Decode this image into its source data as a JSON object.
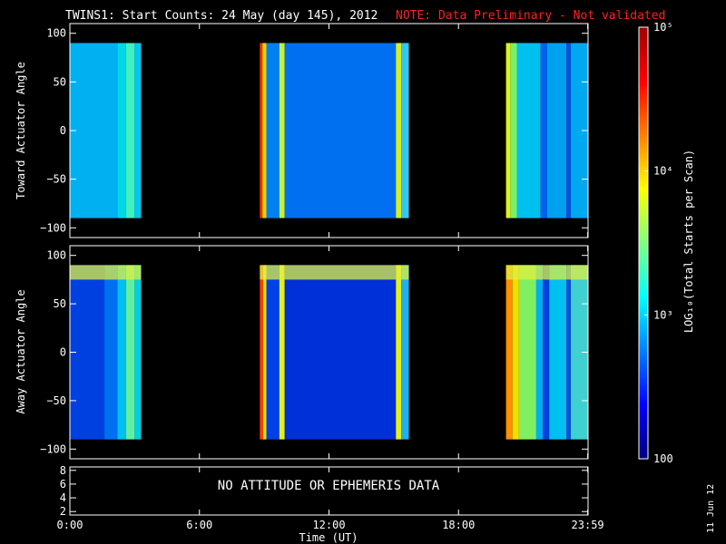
{
  "header": {
    "title": "TWINS1: Start Counts: 24 May (day 145), 2012",
    "note": "NOTE: Data Preliminary - Not validated"
  },
  "footer": {
    "date_stamp": "11 Jun 12"
  },
  "colors": {
    "background": "#000000",
    "axes": "#ffffff",
    "note": "#ff2020"
  },
  "chart_data": [
    {
      "type": "heatmap",
      "name": "toward",
      "ylabel": "Toward Actuator Angle",
      "ylim": [
        -110,
        110
      ],
      "yticks": [
        100,
        50,
        0,
        -50,
        -100
      ],
      "ytick_labels": [
        "100",
        "50",
        "0",
        "−50",
        "−100"
      ],
      "xlim": [
        0,
        24
      ],
      "data_y_range": [
        -90,
        90
      ],
      "bands": [
        {
          "t0": 0.0,
          "t1": 2.2,
          "color": "#00b0f0"
        },
        {
          "t0": 2.2,
          "t1": 2.6,
          "color": "#00d8e8"
        },
        {
          "t0": 2.6,
          "t1": 3.0,
          "color": "#40f0c0"
        },
        {
          "t0": 3.0,
          "t1": 3.3,
          "color": "#00c8f0"
        },
        {
          "t0": 8.8,
          "t1": 8.92,
          "color": "#ff3000"
        },
        {
          "t0": 8.92,
          "t1": 9.1,
          "color": "#f0d000"
        },
        {
          "t0": 9.1,
          "t1": 9.7,
          "color": "#0080f0"
        },
        {
          "t0": 9.7,
          "t1": 9.95,
          "color": "#c0f040"
        },
        {
          "t0": 9.95,
          "t1": 15.1,
          "color": "#0070f0"
        },
        {
          "t0": 15.1,
          "t1": 15.35,
          "color": "#d0f030"
        },
        {
          "t0": 15.35,
          "t1": 15.7,
          "color": "#30c8f0"
        },
        {
          "t0": 20.2,
          "t1": 20.4,
          "color": "#e0f020"
        },
        {
          "t0": 20.4,
          "t1": 20.7,
          "color": "#80f060"
        },
        {
          "t0": 20.7,
          "t1": 21.8,
          "color": "#00c0f0"
        },
        {
          "t0": 21.8,
          "t1": 22.1,
          "color": "#0060f0"
        },
        {
          "t0": 22.1,
          "t1": 23.0,
          "color": "#00a0f0"
        },
        {
          "t0": 23.0,
          "t1": 23.2,
          "color": "#0050e0"
        },
        {
          "t0": 23.2,
          "t1": 24.0,
          "color": "#00a8f0"
        }
      ]
    },
    {
      "type": "heatmap",
      "name": "away",
      "ylabel": "Away Actuator Angle",
      "ylim": [
        -110,
        110
      ],
      "yticks": [
        100,
        50,
        0,
        -50,
        -100
      ],
      "ytick_labels": [
        "100",
        "50",
        "0",
        "−50",
        "−100"
      ],
      "xlim": [
        0,
        24
      ],
      "data_y_range": [
        -90,
        90
      ],
      "bands": [
        {
          "t0": 0.0,
          "t1": 1.6,
          "color": "#0040e0"
        },
        {
          "t0": 1.6,
          "t1": 2.2,
          "color": "#0070f0"
        },
        {
          "t0": 2.2,
          "t1": 2.6,
          "color": "#00c0f0"
        },
        {
          "t0": 2.6,
          "t1": 3.0,
          "color": "#60f0a0"
        },
        {
          "t0": 3.0,
          "t1": 3.3,
          "color": "#00d0e0"
        },
        {
          "t0": 8.8,
          "t1": 8.95,
          "color": "#ff4000"
        },
        {
          "t0": 8.95,
          "t1": 9.1,
          "color": "#f0e000"
        },
        {
          "t0": 9.1,
          "t1": 9.7,
          "color": "#0040e8"
        },
        {
          "t0": 9.7,
          "t1": 9.95,
          "color": "#e0f020"
        },
        {
          "t0": 9.95,
          "t1": 15.1,
          "color": "#0030d8"
        },
        {
          "t0": 15.1,
          "t1": 15.35,
          "color": "#e0f020"
        },
        {
          "t0": 15.35,
          "t1": 15.7,
          "color": "#20b0f0"
        },
        {
          "t0": 20.2,
          "t1": 20.5,
          "color": "#ff9000"
        },
        {
          "t0": 20.5,
          "t1": 20.8,
          "color": "#f0e000"
        },
        {
          "t0": 20.8,
          "t1": 21.6,
          "color": "#80f060"
        },
        {
          "t0": 21.6,
          "t1": 21.9,
          "color": "#00b0f0"
        },
        {
          "t0": 21.9,
          "t1": 22.2,
          "color": "#0040e0"
        },
        {
          "t0": 22.2,
          "t1": 23.0,
          "color": "#00c0f0"
        },
        {
          "t0": 23.0,
          "t1": 23.2,
          "color": "#0050e0"
        },
        {
          "t0": 23.2,
          "t1": 24.0,
          "color": "#40d0d0"
        }
      ],
      "top_band": {
        "y0": 75,
        "y1": 90,
        "color": "#e0f040"
      }
    },
    {
      "type": "table",
      "name": "ephemeris",
      "message": "NO ATTITUDE OR EPHEMERIS DATA",
      "ylim": [
        1.5,
        8.5
      ],
      "yticks": [
        8,
        6,
        4,
        2
      ],
      "ytick_labels": [
        "8",
        "6",
        "4",
        "2"
      ]
    }
  ],
  "xaxis": {
    "label": "Time (UT)",
    "ticks": [
      0,
      6,
      12,
      18,
      23.983
    ],
    "tick_labels": [
      "0:00",
      "6:00",
      "12:00",
      "18:00",
      "23:59"
    ]
  },
  "colorbar": {
    "label": "LOG₁₀(Total Starts per Scan)",
    "scale": "log",
    "range": [
      100,
      100000
    ],
    "tick_values": [
      100,
      1000,
      10000,
      100000
    ],
    "tick_labels": [
      "100",
      "10³",
      "10⁴",
      "10⁵"
    ],
    "gradient": [
      "#000080",
      "#0000ff",
      "#0080ff",
      "#00ffff",
      "#80ff80",
      "#ffff00",
      "#ff8000",
      "#ff0000",
      "#a00000"
    ]
  }
}
